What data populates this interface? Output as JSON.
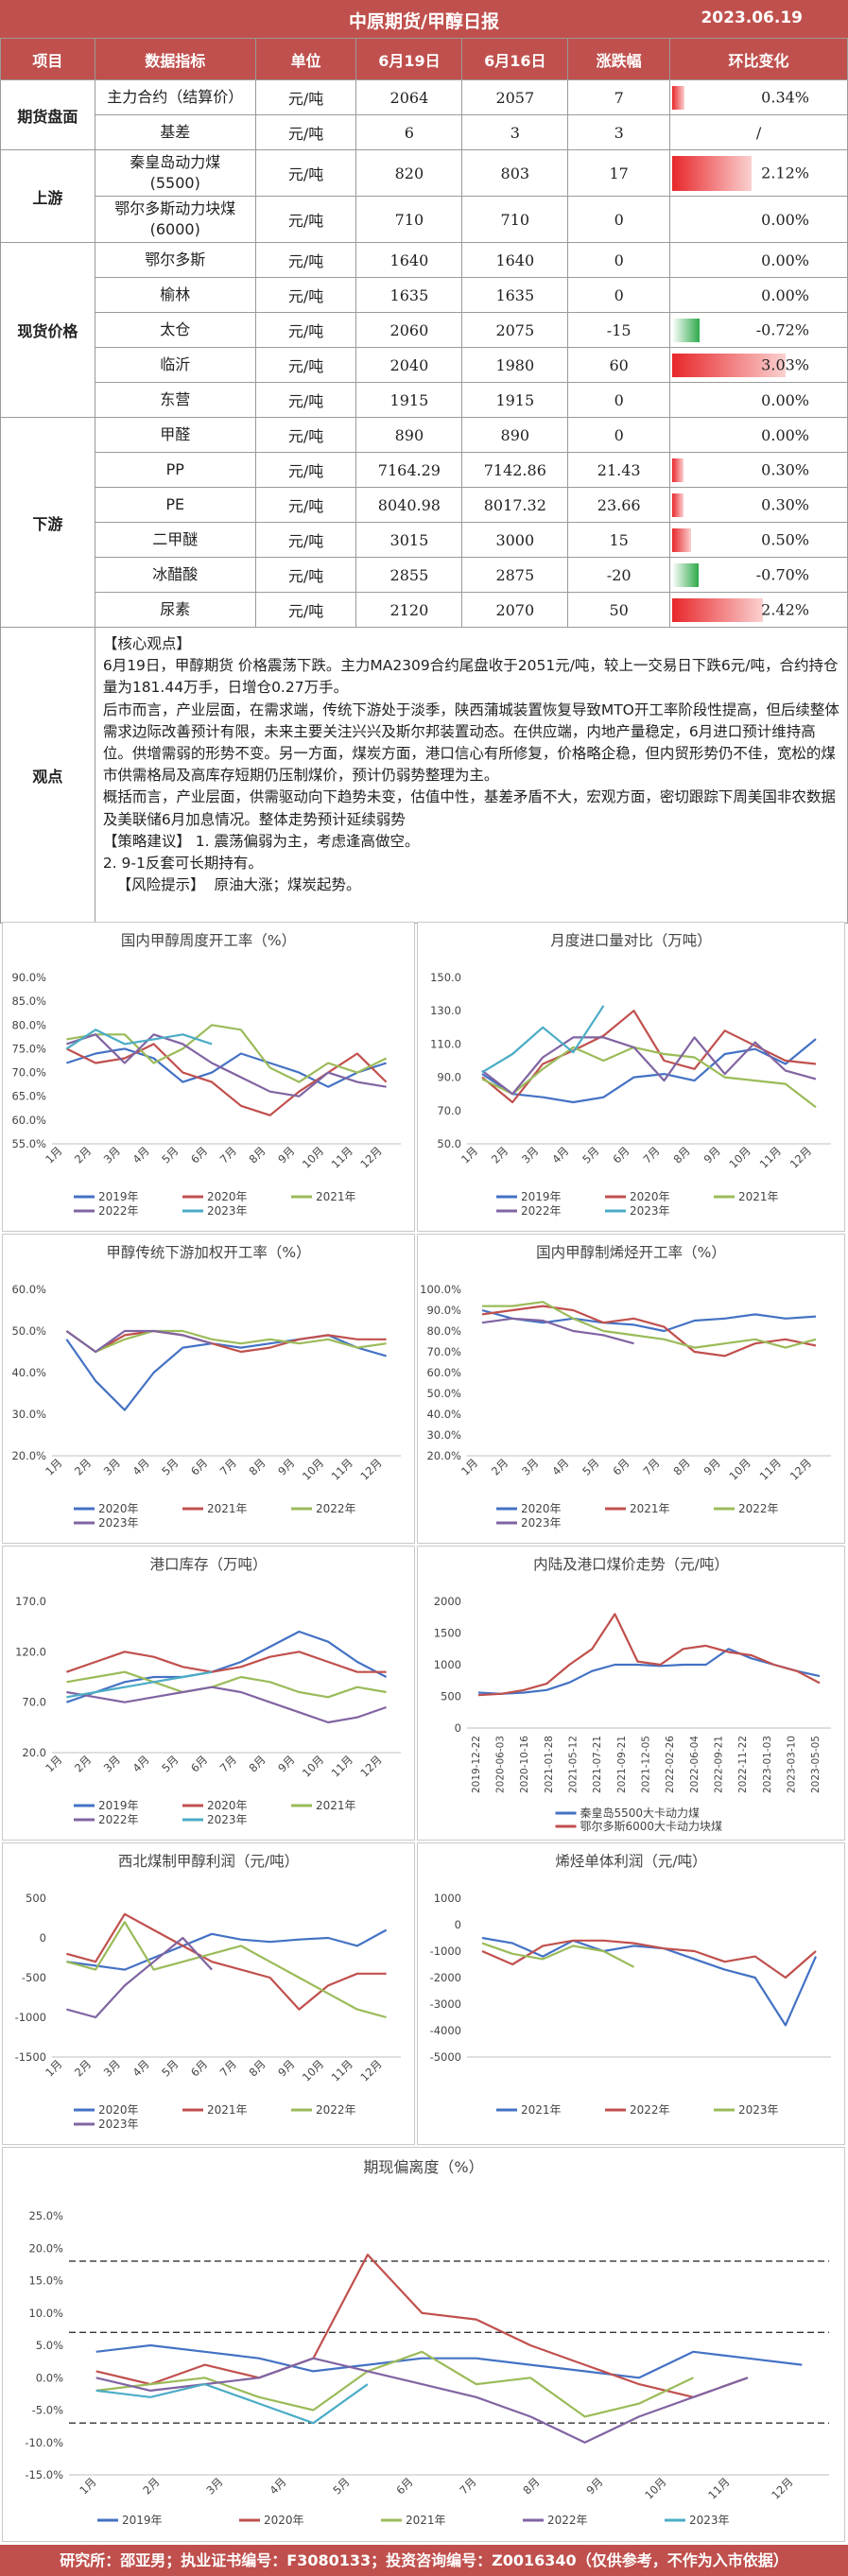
{
  "header": {
    "title": "中原期货/甲醇日报",
    "date": "2023.06.19"
  },
  "table": {
    "columns": [
      "项目",
      "数据指标",
      "单位",
      "6月19日",
      "6月16日",
      "涨跌幅",
      "环比变化"
    ],
    "rows": [
      {
        "section": "期货盘面",
        "indicator": "主力合约（结算价）",
        "unit": "元/吨",
        "today": "2064",
        "prev": "2057",
        "chg": "7",
        "pct": "0.34%",
        "pct_value": 0.34
      },
      {
        "section": "",
        "indicator": "基差",
        "unit": "元/吨",
        "today": "6",
        "prev": "3",
        "chg": "3",
        "pct": "/",
        "pct_value": 0
      },
      {
        "section": "上游",
        "indicator": "秦皇岛动力煤\n(5500)",
        "unit": "元/吨",
        "today": "820",
        "prev": "803",
        "chg": "17",
        "pct": "2.12%",
        "pct_value": 2.12
      },
      {
        "section": "",
        "indicator": "鄂尔多斯动力块煤\n(6000)",
        "unit": "元/吨",
        "today": "710",
        "prev": "710",
        "chg": "0",
        "pct": "0.00%",
        "pct_value": 0
      },
      {
        "section": "现货价格",
        "indicator": "鄂尔多斯",
        "unit": "元/吨",
        "today": "1640",
        "prev": "1640",
        "chg": "0",
        "pct": "0.00%",
        "pct_value": 0
      },
      {
        "section": "",
        "indicator": "榆林",
        "unit": "元/吨",
        "today": "1635",
        "prev": "1635",
        "chg": "0",
        "pct": "0.00%",
        "pct_value": 0
      },
      {
        "section": "",
        "indicator": "太仓",
        "unit": "元/吨",
        "today": "2060",
        "prev": "2075",
        "chg": "-15",
        "pct": "-0.72%",
        "pct_value": -0.72
      },
      {
        "section": "",
        "indicator": "临沂",
        "unit": "元/吨",
        "today": "2040",
        "prev": "1980",
        "chg": "60",
        "pct": "3.03%",
        "pct_value": 3.03
      },
      {
        "section": "",
        "indicator": "东营",
        "unit": "元/吨",
        "today": "1915",
        "prev": "1915",
        "chg": "0",
        "pct": "0.00%",
        "pct_value": 0
      },
      {
        "section": "下游",
        "indicator": "甲醛",
        "unit": "元/吨",
        "today": "890",
        "prev": "890",
        "chg": "0",
        "pct": "0.00%",
        "pct_value": 0
      },
      {
        "section": "",
        "indicator": "PP",
        "unit": "元/吨",
        "today": "7164.29",
        "prev": "7142.86",
        "chg": "21.43",
        "pct": "0.30%",
        "pct_value": 0.3
      },
      {
        "section": "",
        "indicator": "PE",
        "unit": "元/吨",
        "today": "8040.98",
        "prev": "8017.32",
        "chg": "23.66",
        "pct": "0.30%",
        "pct_value": 0.3
      },
      {
        "section": "",
        "indicator": "二甲醚",
        "unit": "元/吨",
        "today": "3015",
        "prev": "3000",
        "chg": "15",
        "pct": "0.50%",
        "pct_value": 0.5
      },
      {
        "section": "",
        "indicator": "冰醋酸",
        "unit": "元/吨",
        "today": "2855",
        "prev": "2875",
        "chg": "-20",
        "pct": "-0.70%",
        "pct_value": -0.7
      },
      {
        "section": "",
        "indicator": "尿素",
        "unit": "元/吨",
        "today": "2120",
        "prev": "2070",
        "chg": "50",
        "pct": "2.42%",
        "pct_value": 2.42
      }
    ],
    "view_label": "观点",
    "view_lines": [
      "【核心观点】",
      "6月19日，甲醇期货 价格震荡下跌。主力MA2309合约尾盘收于2051元/吨，较上一交易日下跌6元/吨，合约持仓量为181.44万手，日增仓0.27万手。",
      "后市而言，产业层面，在需求端，传统下游处于淡季，陕西蒲城装置恢复导致MTO开工率阶段性提高，但后续整体需求边际改善预计有限，未来主要关注兴兴及斯尔邦装置动态。在供应端，内地产量稳定，6月进口预计维持高位。供增需弱的形势不变。另一方面，煤炭方面，港口信心有所修复，价格略企稳，但内贸形势仍不佳，宽松的煤市供需格局及高库存短期仍压制煤价，预计仍弱势整理为主。",
      "概括而言，产业层面，供需驱动向下趋势未变，估值中性，基差矛盾不大，宏观方面，密切跟踪下周美国非农数据及美联储6月加息情况。整体走势预计延续弱势",
      "【策略建议】 1. 震荡偏弱为主，考虑逢高做空。",
      "2. 9-1反套可长期持有。",
      "   【风险提示】  原油大涨；煤炭起势。"
    ]
  },
  "chart_data": [
    {
      "id": "c1",
      "type": "line",
      "title": "国内甲醇周度开工率（%）",
      "yticks": [
        "90.0%",
        "85.0%",
        "80.0%",
        "75.0%",
        "70.0%",
        "65.0%",
        "60.0%",
        "55.0%"
      ],
      "ylim": [
        55,
        90
      ],
      "xticks": [
        "1月",
        "2月",
        "3月",
        "4月",
        "5月",
        "6月",
        "7月",
        "8月",
        "9月",
        "10月",
        "11月",
        "12月"
      ],
      "series": [
        {
          "name": "2019年",
          "color": "#4472c4",
          "values": [
            72,
            74,
            75,
            73,
            68,
            70,
            74,
            72,
            70,
            67,
            70,
            72
          ]
        },
        {
          "name": "2020年",
          "color": "#c0504d",
          "values": [
            75,
            72,
            73,
            76,
            70,
            68,
            63,
            61,
            66,
            70,
            74,
            68
          ]
        },
        {
          "name": "2021年",
          "color": "#9bbb59",
          "values": [
            77,
            78,
            78,
            72,
            75,
            80,
            79,
            71,
            68,
            72,
            70,
            73
          ]
        },
        {
          "name": "2022年",
          "color": "#8064a2",
          "values": [
            76,
            78,
            72,
            78,
            76,
            72,
            69,
            66,
            65,
            70,
            68,
            67
          ]
        },
        {
          "name": "2023年",
          "color": "#4bacc6",
          "values": [
            75,
            79,
            76,
            77,
            78,
            76
          ]
        }
      ]
    },
    {
      "id": "c2",
      "type": "line",
      "title": "月度进口量对比（万吨）",
      "yticks": [
        "150.0",
        "130.0",
        "110.0",
        "90.0",
        "70.0",
        "50.0"
      ],
      "ylim": [
        50,
        150
      ],
      "xticks": [
        "1月",
        "2月",
        "3月",
        "4月",
        "5月",
        "6月",
        "7月",
        "8月",
        "9月",
        "10月",
        "11月",
        "12月"
      ],
      "series": [
        {
          "name": "2019年",
          "color": "#4472c4",
          "values": [
            92,
            80,
            78,
            75,
            78,
            90,
            92,
            88,
            104,
            107,
            98,
            113
          ]
        },
        {
          "name": "2020年",
          "color": "#c0504d",
          "values": [
            90,
            75,
            98,
            106,
            115,
            130,
            100,
            95,
            118,
            109,
            100,
            98
          ]
        },
        {
          "name": "2021年",
          "color": "#9bbb59",
          "values": [
            89,
            80,
            95,
            108,
            100,
            108,
            104,
            102,
            90,
            88,
            86,
            72
          ]
        },
        {
          "name": "2022年",
          "color": "#8064a2",
          "values": [
            94,
            80,
            102,
            114,
            114,
            108,
            88,
            114,
            92,
            111,
            94,
            89
          ]
        },
        {
          "name": "2023年",
          "color": "#4bacc6",
          "values": [
            93,
            104,
            120,
            105,
            133
          ]
        }
      ]
    },
    {
      "id": "c3",
      "type": "line",
      "title": "甲醇传统下游加权开工率（%）",
      "yticks": [
        "60.0%",
        "50.0%",
        "40.0%",
        "30.0%",
        "20.0%"
      ],
      "ylim": [
        20,
        60
      ],
      "xticks": [
        "1月",
        "2月",
        "3月",
        "4月",
        "5月",
        "6月",
        "7月",
        "8月",
        "9月",
        "10月",
        "11月",
        "12月"
      ],
      "series": [
        {
          "name": "2020年",
          "color": "#4472c4",
          "values": [
            48,
            38,
            31,
            40,
            46,
            47,
            46,
            47,
            48,
            49,
            46,
            44
          ]
        },
        {
          "name": "2021年",
          "color": "#c0504d",
          "values": [
            50,
            45,
            49,
            50,
            49,
            47,
            45,
            46,
            48,
            49,
            48,
            48
          ]
        },
        {
          "name": "2022年",
          "color": "#9bbb59",
          "values": [
            50,
            45,
            48,
            50,
            50,
            48,
            47,
            48,
            47,
            48,
            46,
            47
          ]
        },
        {
          "name": "2023年",
          "color": "#8064a2",
          "values": [
            50,
            45,
            50,
            50,
            49,
            47
          ]
        }
      ]
    },
    {
      "id": "c4",
      "type": "line",
      "title": "国内甲醇制烯烃开工率（%）",
      "yticks": [
        "100.0%",
        "90.0%",
        "80.0%",
        "70.0%",
        "60.0%",
        "50.0%",
        "40.0%",
        "30.0%",
        "20.0%"
      ],
      "ylim": [
        20,
        100
      ],
      "xticks": [
        "1月",
        "2月",
        "3月",
        "4月",
        "5月",
        "6月",
        "7月",
        "8月",
        "9月",
        "10月",
        "11月",
        "12月"
      ],
      "series": [
        {
          "name": "2020年",
          "color": "#4472c4",
          "values": [
            90,
            86,
            84,
            86,
            84,
            83,
            80,
            85,
            86,
            88,
            86,
            87
          ]
        },
        {
          "name": "2021年",
          "color": "#c0504d",
          "values": [
            88,
            90,
            92,
            90,
            84,
            86,
            82,
            70,
            68,
            74,
            76,
            73
          ]
        },
        {
          "name": "2022年",
          "color": "#9bbb59",
          "values": [
            92,
            92,
            94,
            86,
            80,
            78,
            76,
            72,
            74,
            76,
            72,
            76
          ]
        },
        {
          "name": "2023年",
          "color": "#8064a2",
          "values": [
            84,
            86,
            85,
            80,
            78,
            74
          ]
        }
      ]
    },
    {
      "id": "c5",
      "type": "line",
      "title": "港口库存（万吨）",
      "yticks": [
        "170.0",
        "120.0",
        "70.0",
        "20.0"
      ],
      "ylim": [
        20,
        170
      ],
      "xticks": [
        "1月",
        "2月",
        "3月",
        "4月",
        "5月",
        "6月",
        "7月",
        "8月",
        "9月",
        "10月",
        "11月",
        "12月"
      ],
      "series": [
        {
          "name": "2019年",
          "color": "#4472c4",
          "values": [
            70,
            80,
            90,
            95,
            95,
            100,
            110,
            125,
            140,
            130,
            110,
            95
          ]
        },
        {
          "name": "2020年",
          "color": "#c0504d",
          "values": [
            100,
            110,
            120,
            115,
            105,
            100,
            105,
            115,
            120,
            110,
            100,
            100
          ]
        },
        {
          "name": "2021年",
          "color": "#9bbb59",
          "values": [
            90,
            95,
            100,
            90,
            80,
            85,
            95,
            90,
            80,
            75,
            85,
            80
          ]
        },
        {
          "name": "2022年",
          "color": "#8064a2",
          "values": [
            80,
            75,
            70,
            75,
            80,
            85,
            80,
            70,
            60,
            50,
            55,
            65
          ]
        },
        {
          "name": "2023年",
          "color": "#4bacc6",
          "values": [
            75,
            80,
            85,
            90,
            95,
            100
          ]
        }
      ]
    },
    {
      "id": "c6",
      "type": "line",
      "title": "内陆及港口煤价走势（元/吨）",
      "yticks": [
        "2000",
        "1500",
        "1000",
        "500",
        "0"
      ],
      "ylim": [
        0,
        2000
      ],
      "xticks": [
        "2019-12-22",
        "2020-06-03",
        "2020-10-16",
        "2021-01-28",
        "2021-05-12",
        "2021-07-21",
        "2021-09-21",
        "2021-12-05",
        "2022-02-26",
        "2022-06-04",
        "2022-09-21",
        "2022-11-22",
        "2023-01-03",
        "2023-03-10",
        "2023-05-05"
      ],
      "series": [
        {
          "name": "秦皇岛5500大卡动力煤",
          "color": "#4472c4",
          "values": [
            560,
            540,
            560,
            600,
            720,
            900,
            1000,
            1000,
            980,
            1000,
            1000,
            1250,
            1100,
            1000,
            900,
            820
          ]
        },
        {
          "name": "鄂尔多斯6000大卡动力块煤",
          "color": "#c0504d",
          "values": [
            520,
            540,
            600,
            700,
            1000,
            1250,
            1800,
            1050,
            1000,
            1250,
            1300,
            1200,
            1150,
            1000,
            900,
            710
          ]
        }
      ]
    },
    {
      "id": "c7",
      "type": "line",
      "title": "西北煤制甲醇利润（元/吨）",
      "yticks": [
        "500",
        "0",
        "-500",
        "-1000",
        "-1500"
      ],
      "ylim": [
        -1500,
        500
      ],
      "xticks": [
        "1月",
        "2月",
        "3月",
        "4月",
        "5月",
        "6月",
        "7月",
        "8月",
        "9月",
        "10月",
        "11月",
        "12月"
      ],
      "series": [
        {
          "name": "2020年",
          "color": "#4472c4",
          "values": [
            -300,
            -350,
            -400,
            -250,
            -100,
            50,
            -20,
            -50,
            -20,
            0,
            -100,
            100
          ]
        },
        {
          "name": "2021年",
          "color": "#c0504d",
          "values": [
            -200,
            -300,
            300,
            100,
            -100,
            -300,
            -400,
            -500,
            -900,
            -600,
            -450,
            -450
          ]
        },
        {
          "name": "2022年",
          "color": "#9bbb59",
          "values": [
            -300,
            -400,
            200,
            -400,
            -300,
            -200,
            -100,
            -300,
            -500,
            -700,
            -900,
            -1000
          ]
        },
        {
          "name": "2023年",
          "color": "#8064a2",
          "values": [
            -900,
            -1000,
            -600,
            -300,
            0,
            -400
          ]
        }
      ]
    },
    {
      "id": "c8",
      "type": "line",
      "title": "烯烃单体利润（元/吨）",
      "yticks": [
        "1000",
        "0",
        "-1000",
        "-2000",
        "-3000",
        "-4000",
        "-5000"
      ],
      "ylim": [
        -5000,
        1000
      ],
      "xticks": [],
      "series": [
        {
          "name": "2021年",
          "color": "#4472c4",
          "values": [
            -500,
            -700,
            -1200,
            -600,
            -1000,
            -800,
            -900,
            -1300,
            -1700,
            -2000,
            -3800,
            -1200
          ]
        },
        {
          "name": "2022年",
          "color": "#c0504d",
          "values": [
            -1000,
            -1500,
            -800,
            -600,
            -600,
            -700,
            -900,
            -1000,
            -1400,
            -1200,
            -2000,
            -1000
          ]
        },
        {
          "name": "2023年",
          "color": "#9bbb59",
          "values": [
            -700,
            -1100,
            -1300,
            -800,
            -1000,
            -1600
          ]
        }
      ]
    },
    {
      "id": "c9",
      "type": "line",
      "title": "期现偏离度（%）",
      "yticks": [
        "25.0%",
        "20.0%",
        "15.0%",
        "10.0%",
        "5.0%",
        "0.0%",
        "-5.0%",
        "-10.0%",
        "-15.0%"
      ],
      "ylim": [
        -15,
        25
      ],
      "xticks": [
        "1月",
        "2月",
        "3月",
        "4月",
        "5月",
        "6月",
        "7月",
        "8月",
        "9月",
        "10月",
        "11月",
        "12月"
      ],
      "series": [
        {
          "name": "2019年",
          "color": "#4472c4",
          "values": [
            4,
            5,
            4,
            3,
            1,
            2,
            3,
            3,
            2,
            1,
            0,
            4,
            3,
            2
          ]
        },
        {
          "name": "2020年",
          "color": "#c0504d",
          "values": [
            1,
            -1,
            2,
            0,
            3,
            19,
            10,
            9,
            5,
            2,
            -1,
            -3,
            0
          ]
        },
        {
          "name": "2021年",
          "color": "#9bbb59",
          "values": [
            -2,
            -1,
            0,
            -3,
            -5,
            1,
            4,
            -1,
            0,
            -6,
            -4,
            0
          ]
        },
        {
          "name": "2022年",
          "color": "#8064a2",
          "values": [
            0,
            -2,
            -1,
            0,
            3,
            1,
            -1,
            -3,
            -6,
            -10,
            -6,
            -3,
            0
          ]
        },
        {
          "name": "2023年",
          "color": "#4bacc6",
          "values": [
            -2,
            -3,
            -1,
            -4,
            -7,
            -1
          ]
        }
      ],
      "ref_lines": [
        {
          "value": 18,
          "color": "#333333"
        },
        {
          "value": 7,
          "color": "#333333"
        },
        {
          "value": -7,
          "color": "#333333"
        }
      ]
    }
  ],
  "footer": {
    "text": "研究所：邵亚男；执业证书编号：F3080133；投资咨询编号：Z0016340（仅供参考，不作为入市依据）"
  }
}
